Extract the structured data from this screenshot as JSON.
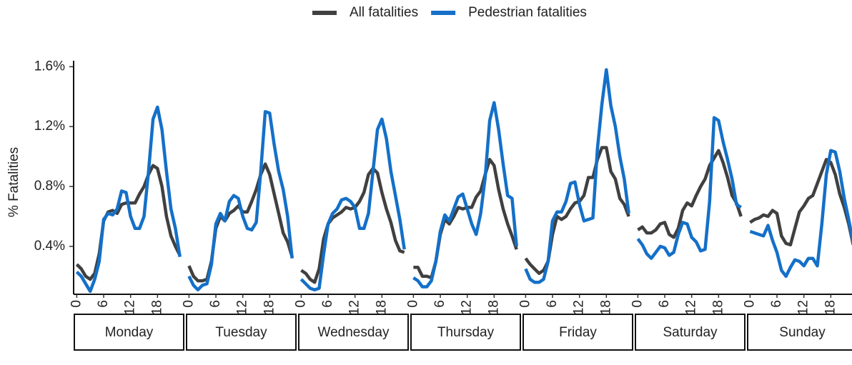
{
  "chart_data": {
    "type": "line",
    "ylabel": "% Fatalities",
    "facets": [
      "Monday",
      "Tuesday",
      "Wednesday",
      "Thursday",
      "Friday",
      "Saturday",
      "Sunday"
    ],
    "x": [
      0,
      1,
      2,
      3,
      4,
      5,
      6,
      7,
      8,
      9,
      10,
      11,
      12,
      13,
      14,
      15,
      16,
      17,
      18,
      19,
      20,
      21,
      22,
      23
    ],
    "xlim": [
      -0.7,
      24
    ],
    "xticks": [
      0,
      6,
      12,
      18
    ],
    "ylim": [
      0.08,
      1.64
    ],
    "yticks": [
      {
        "value": 0.4,
        "label": "0.4%"
      },
      {
        "value": 0.8,
        "label": "0.8%"
      },
      {
        "value": 1.2,
        "label": "1.2%"
      },
      {
        "value": 1.6,
        "label": "1.6%"
      }
    ],
    "series": [
      {
        "name": "All fatalities",
        "color": "#404040",
        "values": [
          [
            0.28,
            0.25,
            0.2,
            0.18,
            0.22,
            0.35,
            0.57,
            0.63,
            0.64,
            0.62,
            0.68,
            0.69,
            0.69,
            0.69,
            0.75,
            0.8,
            0.88,
            0.94,
            0.92,
            0.8,
            0.6,
            0.47,
            0.4,
            0.34
          ],
          [
            0.27,
            0.2,
            0.17,
            0.17,
            0.18,
            0.3,
            0.52,
            0.6,
            0.57,
            0.62,
            0.64,
            0.67,
            0.63,
            0.63,
            0.7,
            0.78,
            0.88,
            0.95,
            0.88,
            0.75,
            0.62,
            0.49,
            0.43,
            0.33
          ],
          [
            0.24,
            0.22,
            0.18,
            0.16,
            0.25,
            0.45,
            0.55,
            0.59,
            0.61,
            0.63,
            0.66,
            0.65,
            0.66,
            0.7,
            0.76,
            0.88,
            0.92,
            0.89,
            0.76,
            0.65,
            0.56,
            0.44,
            0.37,
            0.36
          ],
          [
            0.26,
            0.26,
            0.2,
            0.2,
            0.19,
            0.3,
            0.48,
            0.58,
            0.55,
            0.6,
            0.66,
            0.65,
            0.66,
            0.66,
            0.73,
            0.77,
            0.88,
            0.98,
            0.94,
            0.78,
            0.65,
            0.55,
            0.47,
            0.38
          ],
          [
            0.32,
            0.28,
            0.25,
            0.22,
            0.24,
            0.3,
            0.48,
            0.6,
            0.58,
            0.6,
            0.65,
            0.69,
            0.7,
            0.74,
            0.86,
            0.86,
            0.98,
            1.06,
            1.06,
            0.9,
            0.85,
            0.72,
            0.68,
            0.6
          ],
          [
            0.51,
            0.53,
            0.49,
            0.49,
            0.51,
            0.55,
            0.56,
            0.48,
            0.46,
            0.52,
            0.64,
            0.69,
            0.67,
            0.74,
            0.8,
            0.85,
            0.94,
            0.99,
            1.04,
            0.96,
            0.86,
            0.74,
            0.69,
            0.6
          ],
          [
            0.56,
            0.58,
            0.59,
            0.61,
            0.6,
            0.64,
            0.62,
            0.47,
            0.42,
            0.41,
            0.52,
            0.63,
            0.67,
            0.72,
            0.74,
            0.82,
            0.9,
            0.98,
            0.96,
            0.88,
            0.75,
            0.66,
            0.55,
            0.41
          ]
        ]
      },
      {
        "name": "Pedestrian fatalities",
        "color": "#1470c8",
        "values": [
          [
            0.23,
            0.2,
            0.15,
            0.1,
            0.18,
            0.3,
            0.58,
            0.62,
            0.61,
            0.65,
            0.77,
            0.76,
            0.6,
            0.52,
            0.52,
            0.6,
            0.9,
            1.25,
            1.33,
            1.18,
            0.9,
            0.65,
            0.52,
            0.33
          ],
          [
            0.2,
            0.14,
            0.11,
            0.14,
            0.15,
            0.28,
            0.55,
            0.62,
            0.57,
            0.7,
            0.74,
            0.72,
            0.6,
            0.52,
            0.51,
            0.56,
            0.9,
            1.3,
            1.29,
            1.08,
            0.9,
            0.78,
            0.6,
            0.32
          ],
          [
            0.18,
            0.15,
            0.12,
            0.11,
            0.12,
            0.35,
            0.55,
            0.62,
            0.65,
            0.71,
            0.72,
            0.7,
            0.66,
            0.52,
            0.52,
            0.62,
            0.9,
            1.18,
            1.25,
            1.12,
            0.9,
            0.74,
            0.58,
            0.38
          ],
          [
            0.19,
            0.17,
            0.13,
            0.13,
            0.17,
            0.3,
            0.5,
            0.61,
            0.57,
            0.65,
            0.73,
            0.75,
            0.65,
            0.55,
            0.48,
            0.62,
            0.86,
            1.24,
            1.36,
            1.18,
            0.95,
            0.74,
            0.72,
            0.4
          ],
          [
            0.25,
            0.18,
            0.16,
            0.16,
            0.18,
            0.3,
            0.57,
            0.63,
            0.63,
            0.7,
            0.82,
            0.83,
            0.68,
            0.57,
            0.58,
            0.59,
            1.05,
            1.35,
            1.58,
            1.34,
            1.2,
            1.0,
            0.85,
            0.62
          ],
          [
            0.45,
            0.41,
            0.35,
            0.32,
            0.36,
            0.4,
            0.39,
            0.34,
            0.36,
            0.48,
            0.56,
            0.55,
            0.46,
            0.43,
            0.37,
            0.38,
            0.7,
            1.26,
            1.24,
            1.1,
            0.98,
            0.85,
            0.68,
            0.66
          ],
          [
            0.5,
            0.49,
            0.48,
            0.47,
            0.54,
            0.44,
            0.36,
            0.24,
            0.2,
            0.26,
            0.31,
            0.3,
            0.27,
            0.32,
            0.32,
            0.27,
            0.55,
            0.88,
            1.04,
            1.03,
            0.9,
            0.72,
            0.58,
            0.42
          ]
        ]
      }
    ]
  }
}
